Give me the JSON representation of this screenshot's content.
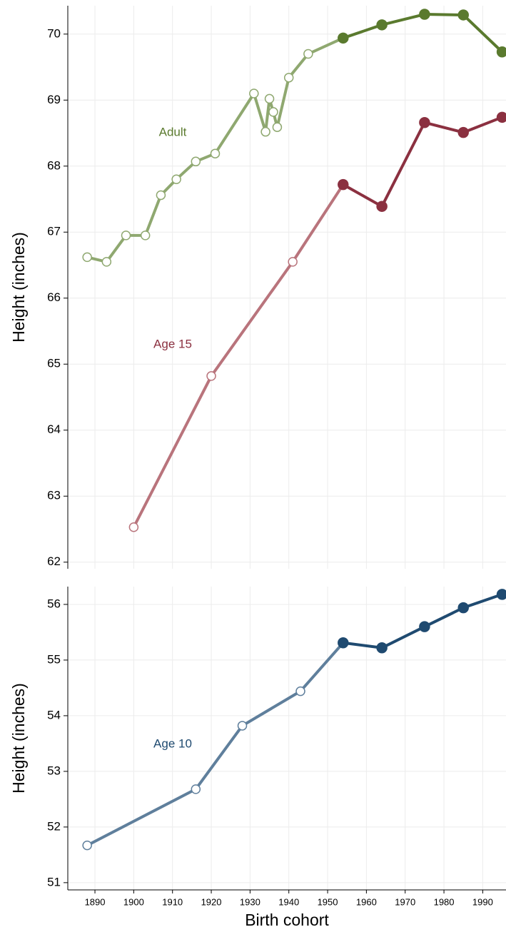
{
  "chart_data": [
    {
      "type": "line",
      "ylabel": "Height (inches)",
      "xlim": [
        1883,
        1996
      ],
      "ylim": [
        61.9,
        70.43
      ],
      "xticks": [
        1890,
        1900,
        1910,
        1920,
        1930,
        1940,
        1950,
        1960,
        1970,
        1980,
        1990
      ],
      "yticks": [
        62,
        63,
        64,
        65,
        66,
        67,
        68,
        69,
        70
      ],
      "grid": true,
      "filled_from": 1954,
      "series": [
        {
          "name": "Adult",
          "color": "#5a7a2e",
          "faded_color": "#8fa870",
          "x": [
            1888,
            1893,
            1898,
            1903,
            1907,
            1911,
            1916,
            1921,
            1931,
            1934,
            1935,
            1936,
            1937,
            1940,
            1945,
            1954,
            1964,
            1975,
            1985,
            1995
          ],
          "values": [
            66.62,
            66.55,
            66.95,
            66.95,
            67.56,
            67.8,
            68.07,
            68.19,
            69.1,
            68.52,
            69.02,
            68.82,
            68.59,
            69.34,
            69.7,
            69.94,
            70.14,
            70.3,
            70.29,
            69.73
          ]
        },
        {
          "name": "Age 15",
          "color": "#8b3040",
          "faded_color": "#b9747c",
          "x": [
            1900,
            1920,
            1941,
            1954,
            1964,
            1975,
            1985,
            1995
          ],
          "values": [
            62.53,
            64.82,
            66.55,
            67.72,
            67.39,
            68.66,
            68.51,
            68.74
          ]
        }
      ]
    },
    {
      "type": "line",
      "ylabel": "Height (inches)",
      "xlabel": "Birth cohort",
      "xlim": [
        1883,
        1996
      ],
      "ylim": [
        50.87,
        56.32
      ],
      "xticks": [
        1890,
        1900,
        1910,
        1920,
        1930,
        1940,
        1950,
        1960,
        1970,
        1980,
        1990
      ],
      "yticks": [
        51,
        52,
        53,
        54,
        55,
        56
      ],
      "grid": true,
      "filled_from": 1954,
      "series": [
        {
          "name": "Age 10",
          "color": "#1f4a70",
          "faded_color": "#5f7f9c",
          "x": [
            1888,
            1916,
            1928,
            1943,
            1954,
            1964,
            1975,
            1985,
            1995
          ],
          "values": [
            51.67,
            52.68,
            53.82,
            54.44,
            55.31,
            55.22,
            55.6,
            55.94,
            56.18
          ]
        }
      ]
    }
  ]
}
